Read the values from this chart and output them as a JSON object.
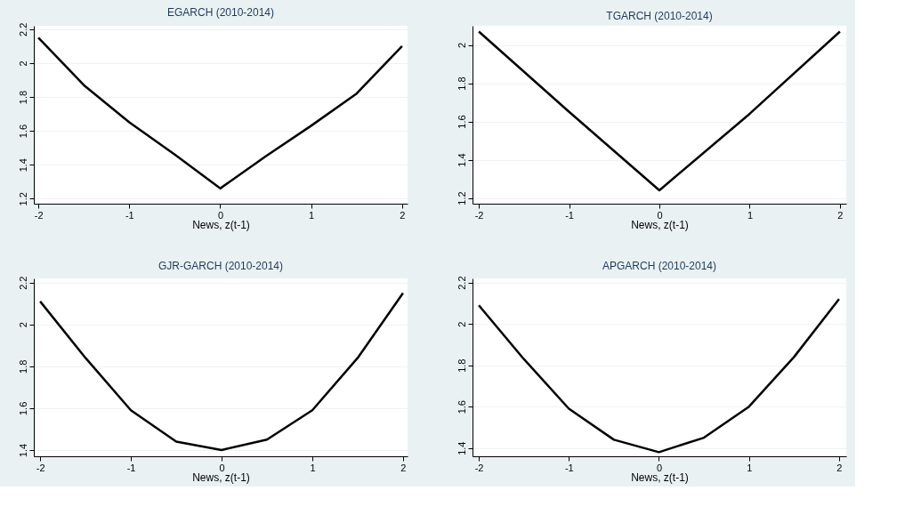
{
  "chart_data": [
    {
      "type": "line",
      "title": "EGARCH (2010-2014)",
      "xlabel": "News, z(t-1)",
      "x": [
        -2,
        -1.5,
        -1,
        -0.5,
        0,
        0.5,
        1,
        1.5,
        2
      ],
      "series": [
        {
          "color": "#000000",
          "values": [
            2.15,
            1.87,
            1.65,
            1.46,
            1.26,
            1.45,
            1.63,
            1.82,
            2.1
          ]
        }
      ],
      "xlim": [
        -2.05,
        2.06
      ],
      "ylim": [
        1.17,
        2.22
      ],
      "xticks": [
        -2,
        -1,
        0,
        1,
        2
      ],
      "yticks": [
        1.2,
        1.4,
        1.6,
        1.8,
        2,
        2.2
      ],
      "grid": "y",
      "marker": "none"
    },
    {
      "type": "line",
      "title": "TGARCH (2010-2014)",
      "xlabel": "News, z(t-1)",
      "x": [
        -2,
        -1,
        0,
        1,
        2
      ],
      "series": [
        {
          "color": "#000000",
          "values": [
            2.07,
            1.65,
            1.24,
            1.64,
            2.07
          ]
        }
      ],
      "xlim": [
        -2.07,
        2.07
      ],
      "ylim": [
        1.17,
        2.1
      ],
      "xticks": [
        -2,
        -1,
        0,
        1,
        2
      ],
      "yticks": [
        1.2,
        1.4,
        1.6,
        1.8,
        2
      ],
      "grid": "y",
      "marker": "none"
    },
    {
      "type": "line",
      "title": "GJR-GARCH (2010-2014)",
      "xlabel": "News, z(t-1)",
      "x": [
        -2,
        -1.5,
        -1,
        -0.5,
        0,
        0.5,
        1,
        1.5,
        2
      ],
      "series": [
        {
          "color": "#000000",
          "values": [
            2.11,
            1.84,
            1.59,
            1.44,
            1.4,
            1.45,
            1.59,
            1.84,
            2.15
          ]
        }
      ],
      "xlim": [
        -2.07,
        2.05
      ],
      "ylim": [
        1.37,
        2.22
      ],
      "xticks": [
        -2,
        -1,
        0,
        1,
        2
      ],
      "yticks": [
        1.4,
        1.6,
        1.8,
        2,
        2.2
      ],
      "grid": "y",
      "marker": "none"
    },
    {
      "type": "line",
      "title": "APGARCH (2010-2014)",
      "xlabel": "News, z(t-1)",
      "x": [
        -2,
        -1.5,
        -1,
        -0.5,
        0,
        0.5,
        1,
        1.5,
        2
      ],
      "series": [
        {
          "color": "#000000",
          "values": [
            2.09,
            1.83,
            1.59,
            1.44,
            1.38,
            1.45,
            1.6,
            1.84,
            2.12
          ]
        }
      ],
      "xlim": [
        -2.07,
        2.08
      ],
      "ylim": [
        1.36,
        2.22
      ],
      "xticks": [
        -2,
        -1,
        0,
        1,
        2
      ],
      "yticks": [
        1.4,
        1.6,
        1.8,
        2,
        2.2
      ],
      "grid": "y",
      "marker": "none"
    }
  ]
}
